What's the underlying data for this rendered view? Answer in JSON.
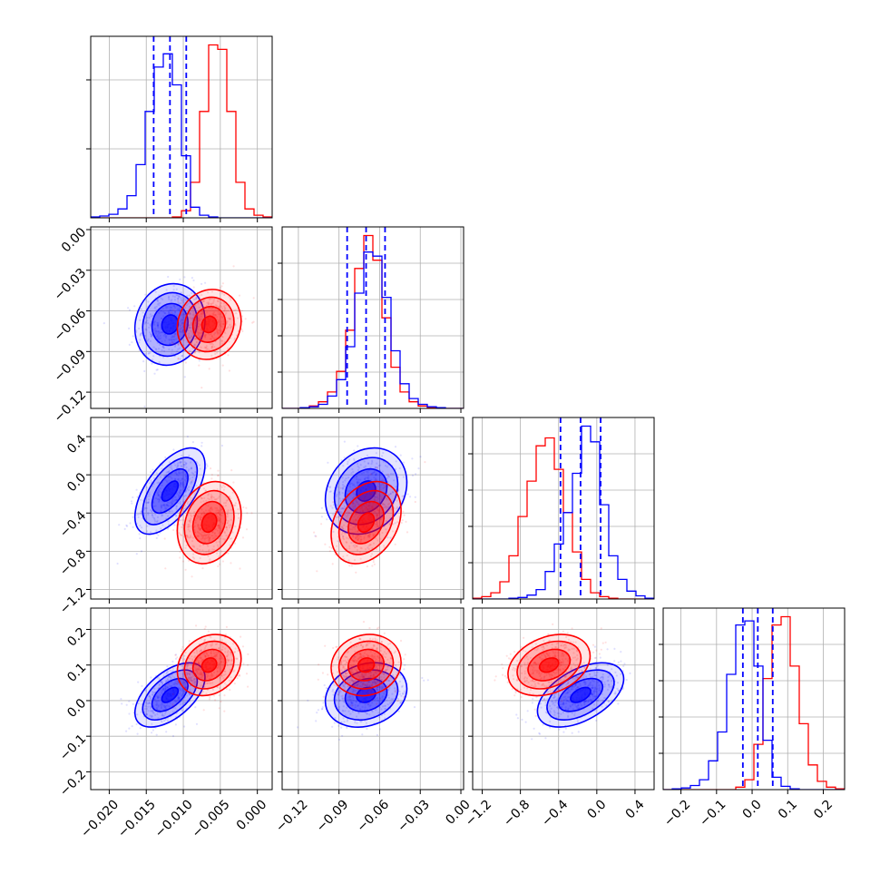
{
  "chart_data": {
    "type": "corner",
    "colors": {
      "blue": "#0000ff",
      "red": "#ff0000"
    },
    "grid": true,
    "parameters": [
      {
        "range": [
          -0.0225,
          0.002
        ],
        "ticks": [
          -0.02,
          -0.015,
          -0.01,
          -0.005,
          0.0
        ],
        "tick_labels": [
          "−0.020",
          "−0.015",
          "−0.010",
          "−0.005",
          "0.000"
        ]
      },
      {
        "range": [
          -0.132,
          0.002
        ],
        "ticks": [
          -0.12,
          -0.09,
          -0.06,
          -0.03,
          0.0
        ],
        "tick_labels": [
          "−0.12",
          "−0.09",
          "−0.06",
          "−0.03",
          "0.00"
        ]
      },
      {
        "range": [
          -1.3,
          0.6
        ],
        "ticks": [
          -1.2,
          -0.8,
          -0.4,
          0.0,
          0.4
        ],
        "tick_labels": [
          "−1.2",
          "−0.8",
          "−0.4",
          "0.0",
          "0.4"
        ]
      },
      {
        "range": [
          -0.25,
          0.26
        ],
        "ticks": [
          -0.2,
          -0.1,
          0.0,
          0.1,
          0.2
        ],
        "tick_labels": [
          "−0.2",
          "−0.1",
          "0.0",
          "0.1",
          "0.2"
        ]
      }
    ],
    "series": [
      {
        "color": "blue",
        "mean": [
          -0.0118,
          -0.07,
          -0.17,
          0.016
        ],
        "std": [
          0.0022,
          0.014,
          0.21,
          0.042
        ],
        "corr": {
          "0-1": 0.1,
          "0-2": 0.6,
          "0-3": 0.55,
          "1-2": 0.2,
          "1-3": 0.2,
          "2-3": 0.5
        },
        "quantiles": [
          [
            -0.014,
            -0.0118,
            -0.0096
          ],
          [
            -0.084,
            -0.07,
            -0.056
          ],
          [
            -0.38,
            -0.17,
            0.04
          ],
          [
            -0.026,
            0.016,
            0.058
          ]
        ]
      },
      {
        "color": "red",
        "mean": [
          -0.0065,
          -0.07,
          -0.5,
          0.1
        ],
        "std": [
          0.002,
          0.012,
          0.2,
          0.04
        ],
        "corr": {
          "0-1": 0.1,
          "0-2": 0.2,
          "0-3": 0.2,
          "1-2": 0.3,
          "1-3": 0.1,
          "2-3": 0.3
        }
      }
    ],
    "diagonal_histograms": [
      {
        "blue": [
          1,
          2,
          4,
          10,
          25,
          60,
          120,
          170,
          185,
          150,
          70,
          12,
          3,
          1,
          0,
          0,
          0,
          0,
          0,
          0
        ],
        "red": [
          0,
          0,
          0,
          0,
          0,
          0,
          0,
          0,
          0,
          1,
          8,
          40,
          120,
          195,
          190,
          120,
          40,
          10,
          3,
          1
        ]
      },
      {
        "blue": [
          0,
          0,
          1,
          2,
          5,
          15,
          35,
          75,
          140,
          190,
          185,
          135,
          70,
          30,
          12,
          5,
          2,
          1,
          0,
          0
        ],
        "red": [
          0,
          0,
          1,
          3,
          8,
          20,
          45,
          95,
          170,
          210,
          180,
          110,
          50,
          20,
          8,
          3,
          1,
          0,
          0,
          0
        ]
      },
      {
        "blue": [
          0,
          0,
          0,
          0,
          1,
          2,
          5,
          12,
          35,
          70,
          110,
          160,
          220,
          200,
          120,
          55,
          25,
          10,
          4,
          1
        ],
        "red": [
          1,
          3,
          8,
          22,
          55,
          105,
          150,
          195,
          205,
          165,
          110,
          60,
          25,
          8,
          3,
          1,
          0,
          0,
          0,
          0
        ]
      },
      {
        "blue": [
          0,
          1,
          2,
          5,
          12,
          35,
          70,
          140,
          200,
          205,
          150,
          60,
          15,
          4,
          1,
          0,
          0,
          0,
          0,
          0
        ],
        "red": [
          0,
          0,
          0,
          0,
          0,
          0,
          0,
          0,
          3,
          12,
          55,
          135,
          200,
          210,
          150,
          80,
          30,
          10,
          3,
          1
        ]
      }
    ]
  }
}
